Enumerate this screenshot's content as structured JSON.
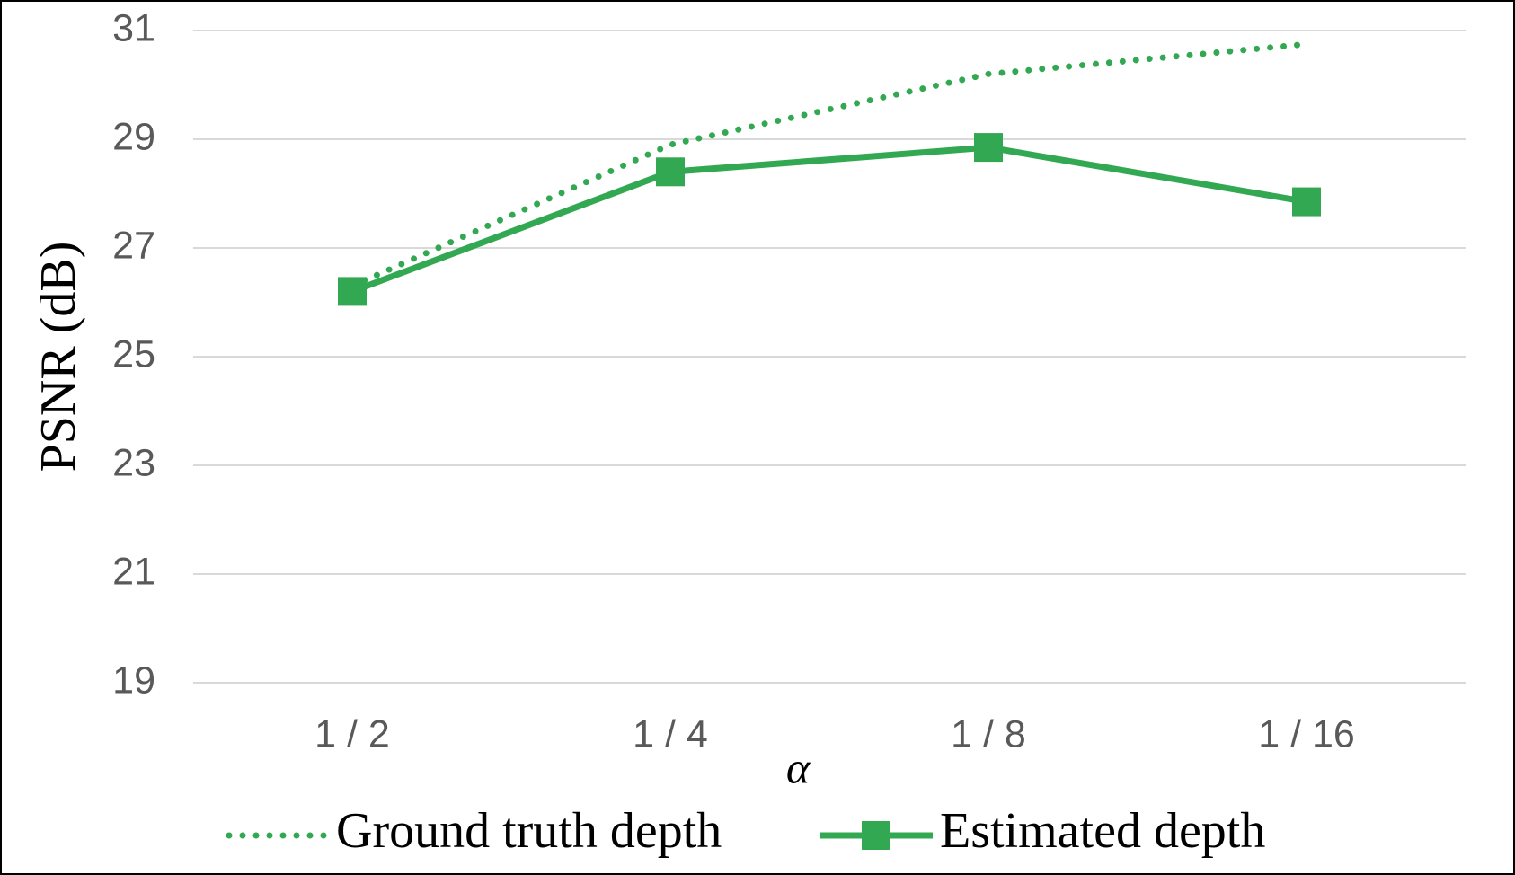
{
  "chart_data": {
    "type": "line",
    "x_label": "α",
    "y_label": "PSNR (dB)",
    "categories": [
      "1 / 2",
      "1 / 4",
      "1 / 8",
      "1 / 16"
    ],
    "series": [
      {
        "name": "Ground truth depth",
        "color": "#33a852",
        "line_style": "dotted",
        "marker": "none",
        "values": [
          26.3,
          28.9,
          30.2,
          30.75
        ]
      },
      {
        "name": "Estimated depth",
        "color": "#33a852",
        "line_style": "solid",
        "marker": "square",
        "values": [
          26.2,
          28.4,
          28.85,
          27.85
        ]
      }
    ],
    "ylim": [
      19,
      31
    ],
    "yticks": [
      19,
      21,
      23,
      25,
      27,
      29,
      31
    ],
    "grid": true,
    "legend": "bottom"
  }
}
